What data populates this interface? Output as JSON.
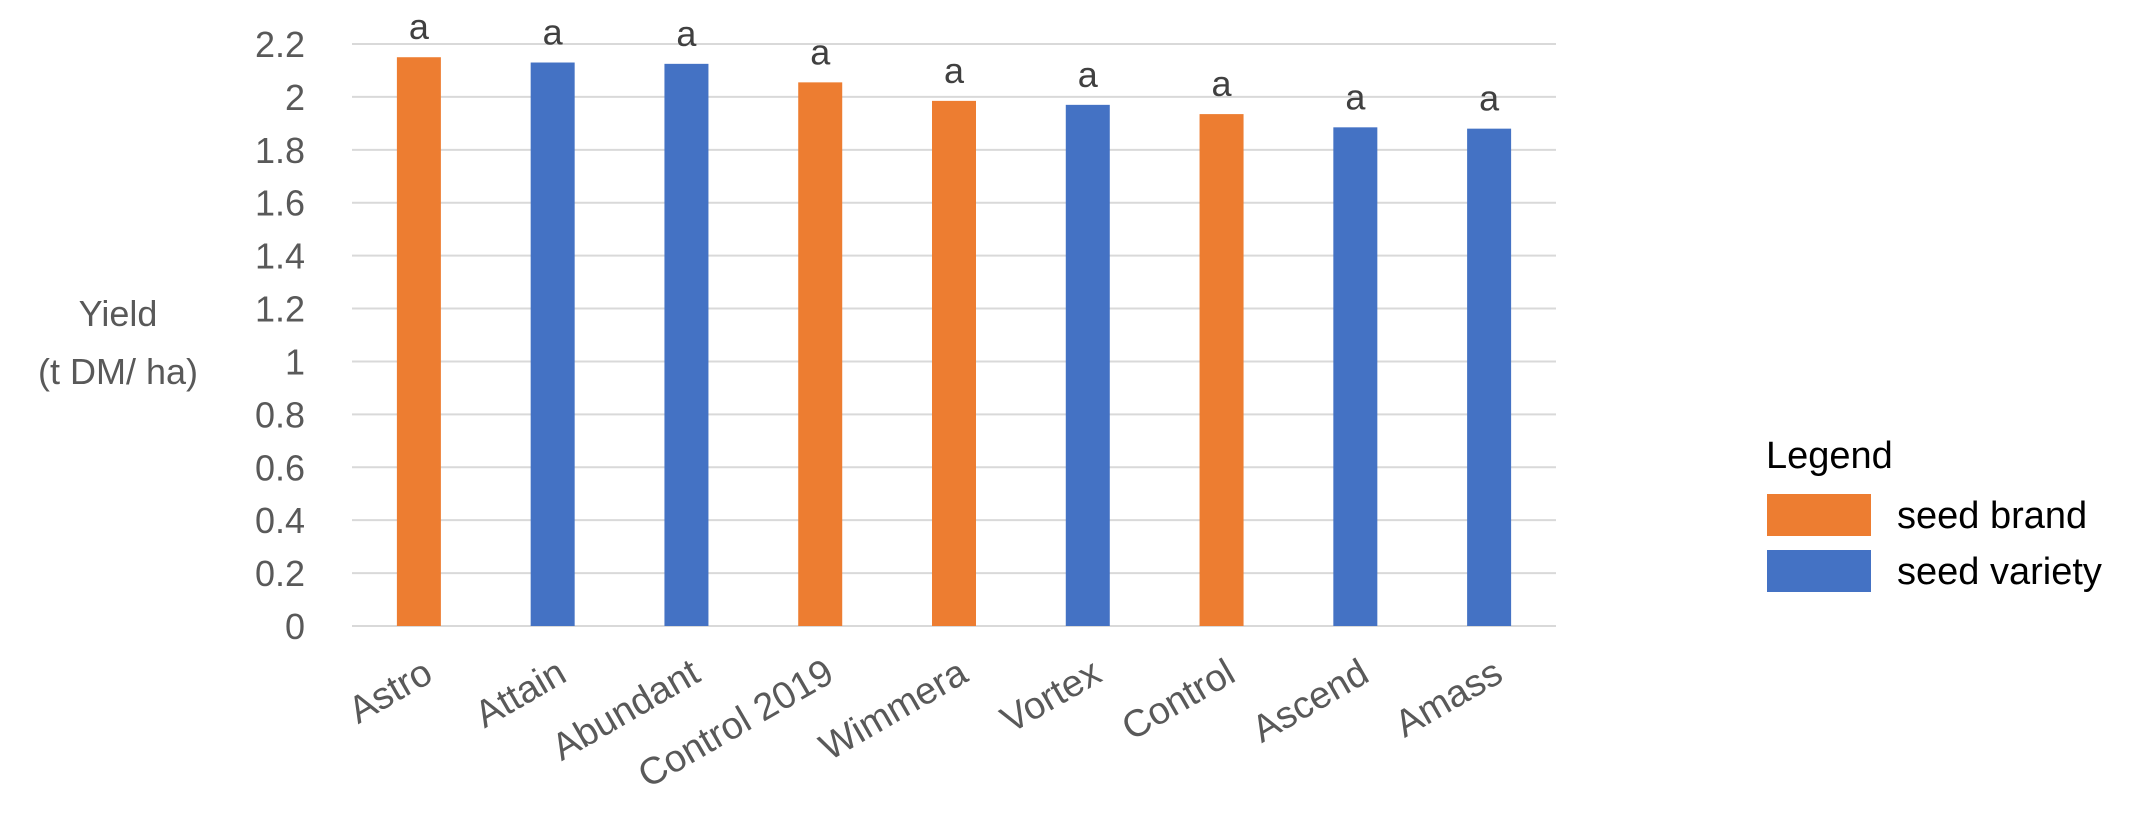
{
  "chart_data": {
    "type": "bar",
    "title": "",
    "xlabel": "",
    "ylabel_lines": [
      "Yield",
      "(t DM/ ha)"
    ],
    "ylim": [
      0,
      2.2
    ],
    "yticks": [
      0,
      0.2,
      0.4,
      0.6,
      0.8,
      1,
      1.2,
      1.4,
      1.6,
      1.8,
      2,
      2.2
    ],
    "ytick_labels": [
      "0",
      "0.2",
      "0.4",
      "0.6",
      "0.8",
      "1",
      "1.2",
      "1.4",
      "1.6",
      "1.8",
      "2",
      "2.2"
    ],
    "grid": true,
    "categories": [
      "Astro",
      "Attain",
      "Abundant",
      "Control 2019",
      "Wimmera",
      "Vortex",
      "Control",
      "Ascend",
      "Amass"
    ],
    "values": [
      2.15,
      2.13,
      2.125,
      2.055,
      1.985,
      1.97,
      1.935,
      1.885,
      1.88
    ],
    "groups": [
      "seed brand",
      "seed variety",
      "seed variety",
      "seed brand",
      "seed brand",
      "seed variety",
      "seed brand",
      "seed variety",
      "seed variety"
    ],
    "annotations": [
      "a",
      "a",
      "a",
      "a",
      "a",
      "a",
      "a",
      "a",
      "a"
    ],
    "legend": {
      "title": "Legend",
      "placement": "right",
      "entries": [
        {
          "label": "seed brand",
          "color": "#ED7D31"
        },
        {
          "label": "seed variety",
          "color": "#4472C4"
        }
      ]
    }
  }
}
